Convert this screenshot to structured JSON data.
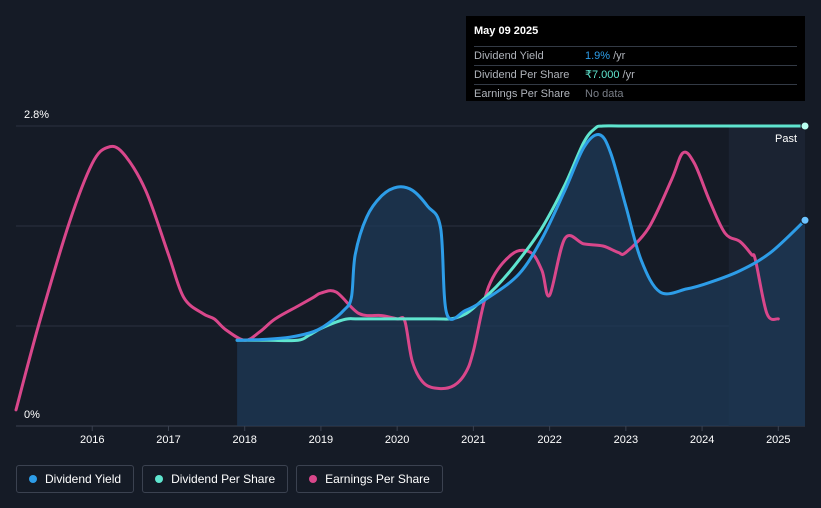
{
  "tooltip": {
    "date": "May 09 2025",
    "rows": [
      {
        "label": "Dividend Yield",
        "value": "1.9%",
        "unit": "/yr"
      },
      {
        "label": "Dividend Per Share",
        "value": "₹7.000",
        "unit": "/yr"
      },
      {
        "label": "Earnings Per Share",
        "value": "No data",
        "unit": ""
      }
    ]
  },
  "legend": [
    {
      "label": "Dividend Yield",
      "color": "#2d9de8"
    },
    {
      "label": "Dividend Per Share",
      "color": "#5fe5cf"
    },
    {
      "label": "Earnings Per Share",
      "color": "#d9478b"
    }
  ],
  "chart_data": {
    "type": "line",
    "title": "",
    "xlabel": "",
    "ylabel": "",
    "x_ticks": [
      "2016",
      "2017",
      "2018",
      "2019",
      "2020",
      "2021",
      "2022",
      "2023",
      "2024",
      "2025"
    ],
    "y_ticks": [
      "0%",
      "2.8%"
    ],
    "xlim": [
      2015.0,
      2025.35
    ],
    "ylim": [
      0,
      2.8
    ],
    "past_label": "Past",
    "past_start": 2024.35,
    "grid": true,
    "series": [
      {
        "name": "Dividend Yield",
        "color": "#2d9de8",
        "x": [
          2017.9,
          2018.3,
          2018.6,
          2018.9,
          2019.1,
          2019.3,
          2019.4,
          2019.45,
          2019.6,
          2019.8,
          2020.0,
          2020.2,
          2020.4,
          2020.57,
          2020.65,
          2020.9,
          2021.2,
          2021.6,
          2021.9,
          2022.2,
          2022.45,
          2022.65,
          2022.8,
          2023.0,
          2023.2,
          2023.45,
          2023.8,
          2024.1,
          2024.5,
          2024.9,
          2025.35
        ],
        "y": [
          0.8,
          0.81,
          0.83,
          0.88,
          0.96,
          1.08,
          1.2,
          1.6,
          1.95,
          2.15,
          2.23,
          2.2,
          2.05,
          1.85,
          1.05,
          1.08,
          1.2,
          1.42,
          1.75,
          2.2,
          2.6,
          2.72,
          2.55,
          2.05,
          1.55,
          1.25,
          1.28,
          1.34,
          1.45,
          1.62,
          1.92
        ]
      },
      {
        "name": "Dividend Per Share",
        "color": "#5fe5cf",
        "x": [
          2017.9,
          2018.3,
          2018.7,
          2018.85,
          2019.0,
          2019.2,
          2019.35,
          2019.5,
          2020.0,
          2020.5,
          2020.7,
          2020.85,
          2021.0,
          2021.3,
          2021.6,
          2021.9,
          2022.2,
          2022.45,
          2022.6,
          2022.7,
          2023.0,
          2024.0,
          2025.35
        ],
        "y": [
          0.8,
          0.8,
          0.8,
          0.85,
          0.91,
          0.97,
          1.0,
          1.0,
          1.0,
          1.0,
          1.0,
          1.03,
          1.1,
          1.3,
          1.55,
          1.85,
          2.25,
          2.65,
          2.78,
          2.8,
          2.8,
          2.8,
          2.8
        ]
      },
      {
        "name": "Earnings Per Share",
        "color": "#d9478b",
        "x": [
          2015.0,
          2015.3,
          2015.7,
          2016.0,
          2016.2,
          2016.4,
          2016.7,
          2017.0,
          2017.2,
          2017.45,
          2017.6,
          2017.75,
          2018.0,
          2018.2,
          2018.4,
          2018.7,
          2018.9,
          2019.0,
          2019.2,
          2019.5,
          2019.8,
          2020.0,
          2020.1,
          2020.2,
          2020.35,
          2020.55,
          2020.75,
          2020.9,
          2021.0,
          2021.2,
          2021.5,
          2021.75,
          2021.9,
          2022.0,
          2022.2,
          2022.45,
          2022.7,
          2022.9,
          2023.0,
          2023.3,
          2023.6,
          2023.75,
          2023.9,
          2024.1,
          2024.3,
          2024.5,
          2024.65,
          2024.7,
          2024.85,
          2025.0
        ],
        "y": [
          0.15,
          0.95,
          1.9,
          2.45,
          2.6,
          2.55,
          2.2,
          1.6,
          1.2,
          1.05,
          1.0,
          0.9,
          0.8,
          0.88,
          1.0,
          1.12,
          1.2,
          1.24,
          1.25,
          1.05,
          1.03,
          1.0,
          0.98,
          0.6,
          0.4,
          0.35,
          0.38,
          0.5,
          0.7,
          1.3,
          1.6,
          1.62,
          1.45,
          1.22,
          1.75,
          1.7,
          1.68,
          1.62,
          1.62,
          1.85,
          2.3,
          2.55,
          2.45,
          2.1,
          1.8,
          1.72,
          1.6,
          1.55,
          1.05,
          1.0
        ]
      }
    ]
  }
}
